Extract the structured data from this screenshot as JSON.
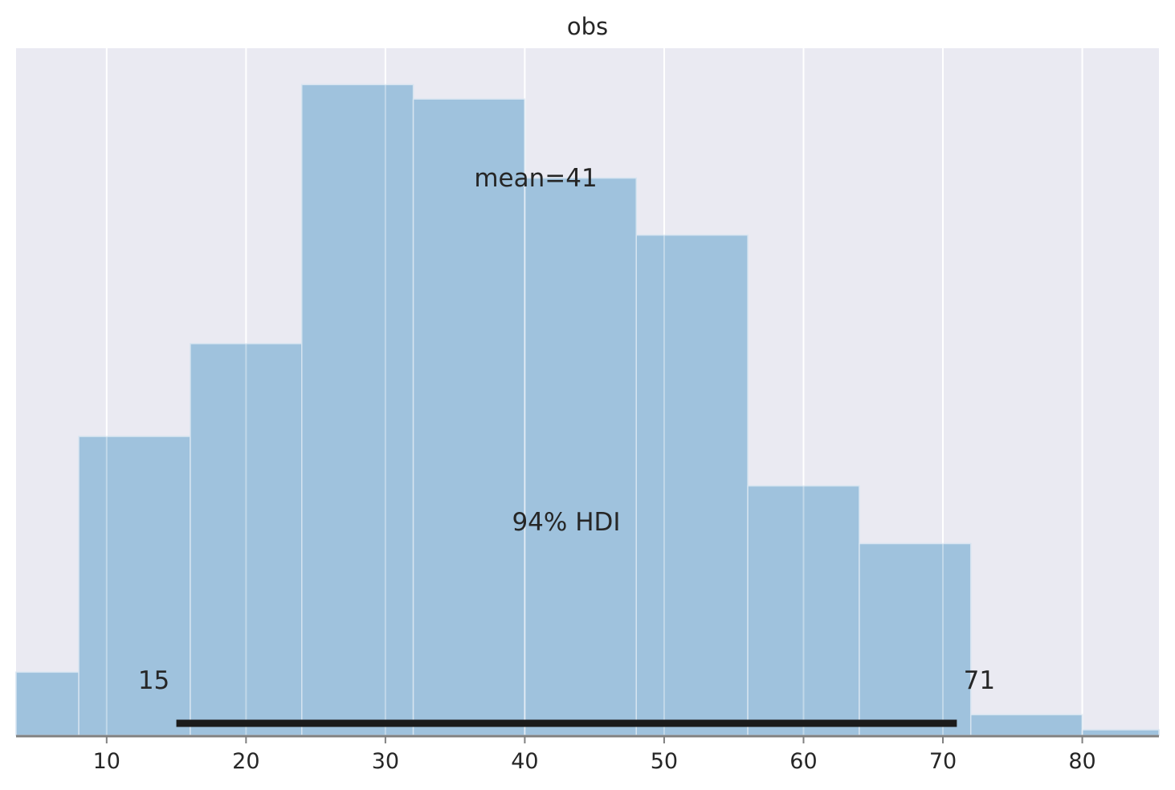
{
  "chart_data": {
    "type": "bar",
    "title": "obs",
    "xlabel": "",
    "ylabel": "",
    "xlim": [
      3.5,
      85.5
    ],
    "ylim": [
      0,
      1
    ],
    "xticks": [
      10,
      20,
      30,
      40,
      50,
      60,
      70,
      80
    ],
    "xtick_labels": [
      "10",
      "20",
      "30",
      "40",
      "50",
      "60",
      "70",
      "80"
    ],
    "grid": true,
    "bins": [
      {
        "x0": 0,
        "x1": 8,
        "value": 0.092
      },
      {
        "x0": 8,
        "x1": 16,
        "value": 0.435
      },
      {
        "x0": 16,
        "x1": 24,
        "value": 0.57
      },
      {
        "x0": 24,
        "x1": 32,
        "value": 0.947
      },
      {
        "x0": 32,
        "x1": 40,
        "value": 0.926
      },
      {
        "x0": 40,
        "x1": 48,
        "value": 0.811
      },
      {
        "x0": 48,
        "x1": 56,
        "value": 0.728
      },
      {
        "x0": 56,
        "x1": 64,
        "value": 0.363
      },
      {
        "x0": 64,
        "x1": 72,
        "value": 0.279
      },
      {
        "x0": 72,
        "x1": 80,
        "value": 0.03
      },
      {
        "x0": 80,
        "x1": 88,
        "value": 0.008
      }
    ],
    "mean_label": "mean=41",
    "hdi": {
      "label": "94% HDI",
      "low": 15,
      "high": 71,
      "low_label": "15",
      "high_label": "71"
    },
    "colors": {
      "bar": "#9bc0db",
      "background": "#eaeaf2",
      "grid": "#ffffff",
      "hdi_line": "#1b1b1b",
      "axis": "#808080"
    }
  }
}
